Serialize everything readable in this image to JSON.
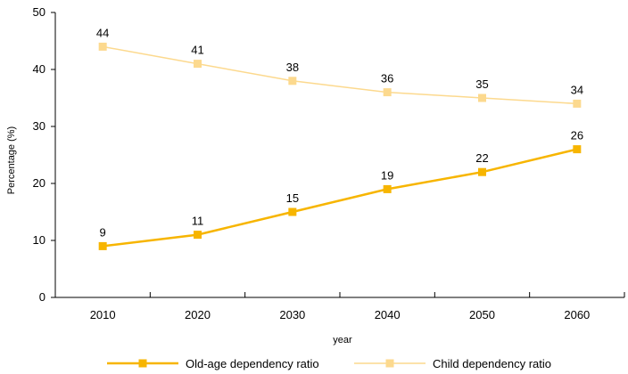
{
  "chart_data": {
    "type": "line",
    "title": "",
    "xlabel": "year",
    "ylabel": "Percentage (%)",
    "categories": [
      "2010",
      "2020",
      "2030",
      "2040",
      "2050",
      "2060"
    ],
    "ylim": [
      0,
      50
    ],
    "yticks": [
      "0",
      "10",
      "20",
      "30",
      "40",
      "50"
    ],
    "grid": false,
    "legend_position": "bottom",
    "series": [
      {
        "name": "Old-age dependency ratio",
        "values": [
          9,
          11,
          15,
          19,
          22,
          26
        ],
        "color": "#F7B500",
        "marker": "square"
      },
      {
        "name": "Child dependency ratio",
        "values": [
          44,
          41,
          38,
          36,
          35,
          34
        ],
        "color": "#FCD98E",
        "marker": "square"
      }
    ]
  }
}
